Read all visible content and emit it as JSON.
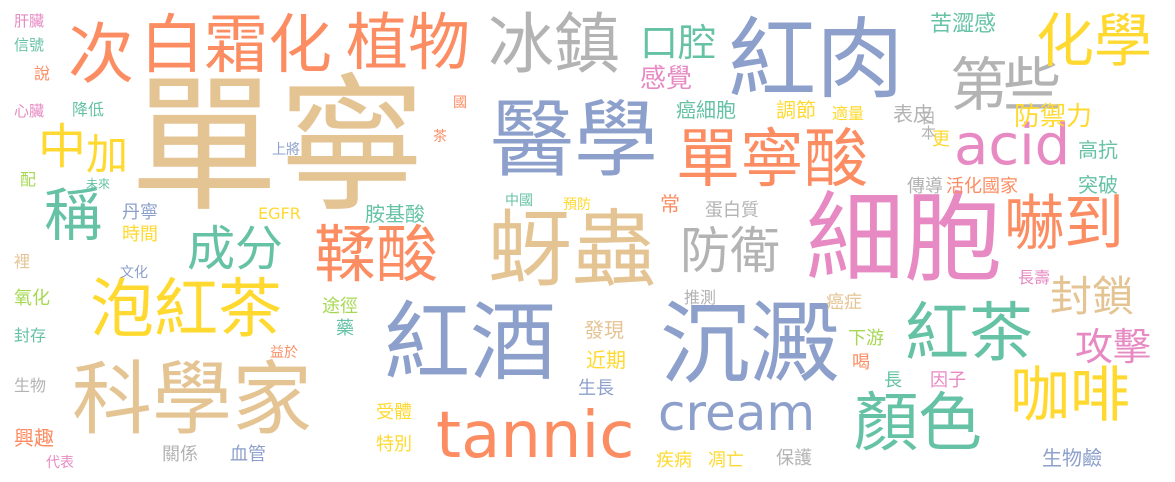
{
  "palette": {
    "tan": "#E5C494",
    "blue": "#8DA0CB",
    "orange": "#FC8D62",
    "green": "#66C2A5",
    "pink": "#E78AC3",
    "lime": "#A6D854",
    "yellow": "#FFD92F",
    "gray": "#B3B3B3"
  },
  "words": [
    {
      "text": "單寧",
      "color": "tan"
    },
    {
      "text": "醫學",
      "color": "blue"
    },
    {
      "text": "紅肉",
      "color": "blue"
    },
    {
      "text": "冰鎮",
      "color": "gray"
    },
    {
      "text": "植物",
      "color": "orange"
    },
    {
      "text": "白霜化",
      "color": "orange"
    },
    {
      "text": "次",
      "color": "orange"
    },
    {
      "text": "第",
      "color": "gray"
    },
    {
      "text": "些",
      "color": "gray"
    },
    {
      "text": "化學",
      "color": "yellow"
    },
    {
      "text": "口腔",
      "color": "green"
    },
    {
      "text": "感覺",
      "color": "pink"
    },
    {
      "text": "單寧酸",
      "color": "orange"
    },
    {
      "text": "acid",
      "color": "pink"
    },
    {
      "text": "中",
      "color": "yellow"
    },
    {
      "text": "加",
      "color": "yellow"
    },
    {
      "text": "稱",
      "color": "green"
    },
    {
      "text": "成分",
      "color": "green"
    },
    {
      "text": "鞣酸",
      "color": "orange"
    },
    {
      "text": "蚜蟲",
      "color": "tan"
    },
    {
      "text": "防衛",
      "color": "gray"
    },
    {
      "text": "細胞",
      "color": "pink"
    },
    {
      "text": "嚇到",
      "color": "orange"
    },
    {
      "text": "泡紅茶",
      "color": "yellow"
    },
    {
      "text": "紅酒",
      "color": "blue"
    },
    {
      "text": "沉澱",
      "color": "blue"
    },
    {
      "text": "封鎖",
      "color": "tan"
    },
    {
      "text": "紅茶",
      "color": "green"
    },
    {
      "text": "攻擊",
      "color": "pink"
    },
    {
      "text": "科學家",
      "color": "tan"
    },
    {
      "text": "tannic",
      "color": "orange"
    },
    {
      "text": "cream",
      "color": "blue"
    },
    {
      "text": "顏色",
      "color": "green"
    },
    {
      "text": "咖啡",
      "color": "yellow"
    },
    {
      "text": "防禦力",
      "color": "yellow"
    },
    {
      "text": "苦澀感",
      "color": "green"
    },
    {
      "text": "癌細胞",
      "color": "green"
    },
    {
      "text": "調節",
      "color": "yellow"
    },
    {
      "text": "適量",
      "color": "yellow"
    },
    {
      "text": "表皮",
      "color": "gray"
    },
    {
      "text": "高抗",
      "color": "green"
    },
    {
      "text": "突破",
      "color": "green"
    },
    {
      "text": "活化國家",
      "color": "orange"
    },
    {
      "text": "傳導",
      "color": "gray"
    },
    {
      "text": "日本",
      "color": "gray"
    },
    {
      "text": "更",
      "color": "yellow"
    },
    {
      "text": "常",
      "color": "orange"
    },
    {
      "text": "國",
      "color": "orange"
    },
    {
      "text": "茶",
      "color": "orange"
    },
    {
      "text": "上將",
      "color": "blue"
    },
    {
      "text": "肝臟",
      "color": "pink"
    },
    {
      "text": "信號",
      "color": "green"
    },
    {
      "text": "說",
      "color": "orange"
    },
    {
      "text": "心臟",
      "color": "pink"
    },
    {
      "text": "降低",
      "color": "green"
    },
    {
      "text": "配",
      "color": "lime"
    },
    {
      "text": "未來",
      "color": "green"
    },
    {
      "text": "丹寧",
      "color": "blue"
    },
    {
      "text": "時間",
      "color": "yellow"
    },
    {
      "text": "EGFR",
      "color": "yellow"
    },
    {
      "text": "胺基酸",
      "color": "green"
    },
    {
      "text": "中國",
      "color": "green"
    },
    {
      "text": "預防",
      "color": "yellow"
    },
    {
      "text": "蛋白質",
      "color": "gray"
    },
    {
      "text": "文化",
      "color": "blue"
    },
    {
      "text": "裡",
      "color": "tan"
    },
    {
      "text": "氧化",
      "color": "lime"
    },
    {
      "text": "長壽",
      "color": "pink"
    },
    {
      "text": "推測",
      "color": "gray"
    },
    {
      "text": "途徑",
      "color": "lime"
    },
    {
      "text": "藥",
      "color": "green"
    },
    {
      "text": "癌症",
      "color": "tan"
    },
    {
      "text": "下游",
      "color": "lime"
    },
    {
      "text": "發現",
      "color": "tan"
    },
    {
      "text": "近期",
      "color": "yellow"
    },
    {
      "text": "封存",
      "color": "green"
    },
    {
      "text": "益於",
      "color": "orange"
    },
    {
      "text": "喝",
      "color": "orange"
    },
    {
      "text": "因子",
      "color": "pink"
    },
    {
      "text": "長",
      "color": "green"
    },
    {
      "text": "生物",
      "color": "gray"
    },
    {
      "text": "生長",
      "color": "blue"
    },
    {
      "text": "受體",
      "color": "yellow"
    },
    {
      "text": "特別",
      "color": "yellow"
    },
    {
      "text": "興趣",
      "color": "orange"
    },
    {
      "text": "代表",
      "color": "pink"
    },
    {
      "text": "關係",
      "color": "gray"
    },
    {
      "text": "血管",
      "color": "blue"
    },
    {
      "text": "疾病",
      "color": "yellow"
    },
    {
      "text": "凋亡",
      "color": "yellow"
    },
    {
      "text": "保護",
      "color": "gray"
    },
    {
      "text": "生物鹼",
      "color": "blue"
    }
  ]
}
